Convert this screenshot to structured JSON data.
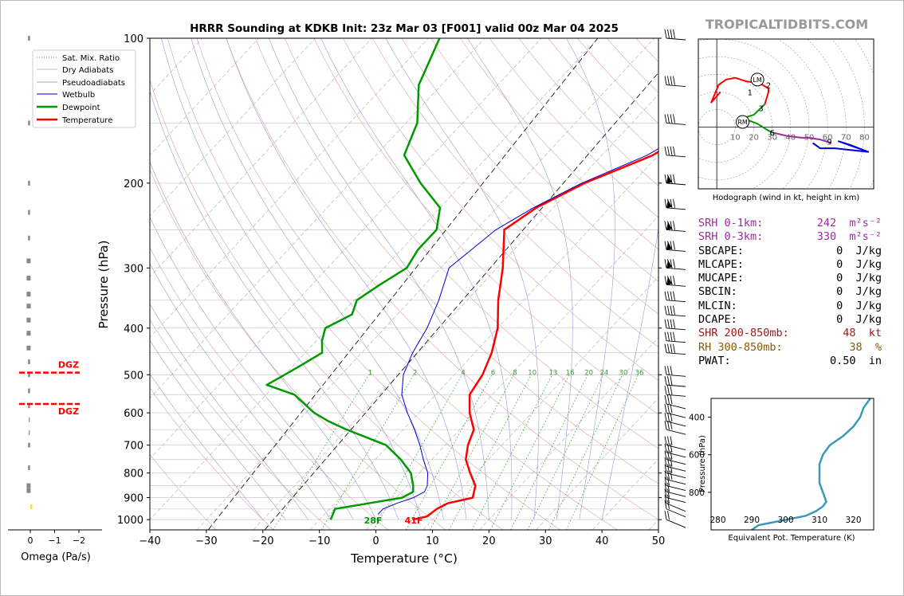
{
  "title": "HRRR Sounding at KDKB Init: 23z Mar 03 [F001] valid 00z Mar 04 2025",
  "watermark": "TROPICALTIDBITS.COM",
  "axes": {
    "xlabel": "Temperature (°C)",
    "ylabel": "Pressure (hPa)",
    "x_ticks": [
      "−40",
      "−30",
      "−20",
      "−10",
      "0",
      "10",
      "20",
      "30",
      "40",
      "50"
    ],
    "y_ticks": [
      "100",
      "200",
      "300",
      "400",
      "500",
      "600",
      "700",
      "800",
      "900",
      "1000"
    ]
  },
  "legend": [
    "Sat. Mix. Ratio",
    "Dry Adiabats",
    "Pseudoadiabats",
    "Wetbulb",
    "Dewpoint",
    "Temperature"
  ],
  "mixing_ratio_labels": [
    "1",
    "2",
    "4",
    "6",
    "8",
    "10",
    "13",
    "16",
    "20",
    "24",
    "30",
    "36"
  ],
  "surface_labels": {
    "dewpoint": "28F",
    "temperature": "41F"
  },
  "omega": {
    "xlabel": "Omega (Pa/s)",
    "ticks": [
      "0",
      "−1",
      "−2"
    ],
    "dgz_label": "DGZ"
  },
  "hodograph": {
    "caption": "Hodograph (wind in kt, height in km)",
    "ring_labels": [
      "10",
      "20",
      "30",
      "40",
      "50",
      "60",
      "70",
      "80"
    ],
    "markers": [
      "LM",
      "RM"
    ],
    "height_labels": [
      "1",
      "2",
      "3",
      "6",
      "9"
    ]
  },
  "thetae": {
    "xlabel": "Equivalent Pot. Temperature (K)",
    "ylabel": "Pressure (hPa)",
    "x_ticks": [
      "280",
      "290",
      "300",
      "310",
      "320"
    ],
    "y_ticks": [
      "400",
      "600",
      "800"
    ]
  },
  "stats": [
    {
      "label": "SRH 0-1km:",
      "value": "242",
      "unit": "m²s⁻²",
      "color": "#9b2d9b"
    },
    {
      "label": "SRH 0-3km:",
      "value": "330",
      "unit": "m²s⁻²",
      "color": "#9b2d9b"
    },
    {
      "label": "SBCAPE:",
      "value": "0",
      "unit": "J/kg",
      "color": "#000000"
    },
    {
      "label": "MLCAPE:",
      "value": "0",
      "unit": "J/kg",
      "color": "#000000"
    },
    {
      "label": "MUCAPE:",
      "value": "0",
      "unit": "J/kg",
      "color": "#000000"
    },
    {
      "label": "SBCIN:",
      "value": "0",
      "unit": "J/kg",
      "color": "#000000"
    },
    {
      "label": "MLCIN:",
      "value": "0",
      "unit": "J/kg",
      "color": "#000000"
    },
    {
      "label": "DCAPE:",
      "value": "0",
      "unit": "J/kg",
      "color": "#000000"
    },
    {
      "label": "SHR 200-850mb:",
      "value": "48",
      "unit": "kt",
      "color": "#a01818"
    },
    {
      "label": "RH 300-850mb:",
      "value": "38",
      "unit": "%",
      "color": "#8a5a00"
    },
    {
      "label": "PWAT:",
      "value": "0.50",
      "unit": "in",
      "color": "#000000"
    }
  ],
  "chart_data": [
    {
      "type": "line",
      "name": "skew-t",
      "xlim": [
        -40,
        50
      ],
      "ylim_hpa": [
        1050,
        100
      ],
      "y_log": true,
      "skew": "isotherms slanted",
      "grid": true,
      "legend_position": "top-left",
      "series": [
        {
          "name": "Temperature",
          "color": "#ff0000",
          "p": [
            1000,
            985,
            950,
            925,
            900,
            850,
            800,
            750,
            700,
            650,
            600,
            550,
            500,
            450,
            400,
            350,
            300,
            250,
            225,
            200,
            175,
            150,
            125,
            100
          ],
          "t": [
            6.5,
            8.5,
            9,
            10,
            13.5,
            12,
            9,
            6,
            4,
            2.5,
            -1,
            -4,
            -5,
            -7,
            -10,
            -14.5,
            -19,
            -25,
            -23,
            -18.5,
            -11,
            -7,
            -5.5,
            -3.5
          ]
        },
        {
          "name": "Dewpoint",
          "color": "#009900",
          "p": [
            1000,
            950,
            925,
            900,
            875,
            850,
            800,
            750,
            700,
            650,
            625,
            600,
            550,
            525,
            500,
            475,
            450,
            425,
            400,
            375,
            350,
            325,
            300,
            275,
            250,
            225,
            200,
            175,
            150,
            125,
            100
          ],
          "t": [
            -8,
            -9,
            -4,
            1,
            2,
            1,
            -1.5,
            -5.5,
            -10.5,
            -20,
            -24.5,
            -28.5,
            -35,
            -41.5,
            -40,
            -38.5,
            -37,
            -39,
            -40.5,
            -38,
            -39.5,
            -38,
            -36,
            -37,
            -37,
            -40,
            -47.5,
            -55,
            -58,
            -64,
            -68
          ]
        },
        {
          "name": "Wetbulb",
          "color": "#0000cc",
          "p": [
            975,
            950,
            925,
            900,
            875,
            850,
            800,
            750,
            700,
            650,
            600,
            550,
            500,
            450,
            400,
            350,
            300,
            250,
            225,
            200,
            175,
            150,
            125,
            100
          ],
          "t": [
            -0.5,
            -0.5,
            1,
            3,
            4,
            3.5,
            1.5,
            -1.5,
            -4.5,
            -8,
            -12,
            -16,
            -19,
            -21,
            -22.5,
            -25,
            -28.5,
            -26.5,
            -23.5,
            -19,
            -12,
            -7.5,
            -6,
            -3.5
          ]
        }
      ],
      "wind_barb_levels_hpa": [
        1000,
        950,
        925,
        900,
        875,
        850,
        825,
        800,
        775,
        750,
        725,
        700,
        650,
        625,
        600,
        575,
        550,
        525,
        500,
        450,
        425,
        400,
        375,
        350,
        325,
        300,
        275,
        250,
        225,
        200,
        175,
        150,
        125,
        100
      ]
    },
    {
      "type": "line",
      "name": "omega",
      "xlim": [
        0.3,
        -2.6
      ],
      "xlabel": "Omega (Pa/s)",
      "dgz_hpa": [
        495,
        575
      ]
    },
    {
      "type": "line",
      "name": "hodograph",
      "xlim_kt": [
        -10,
        85
      ],
      "ylim_kt": [
        -35,
        50
      ],
      "series": [
        {
          "name": "0-3 km",
          "color": "#ff0000",
          "u": [
            2,
            -3,
            1,
            5,
            10,
            16,
            23,
            28,
            28,
            26
          ],
          "v": [
            20,
            14,
            24,
            27,
            28,
            26,
            25,
            22,
            20,
            13
          ]
        },
        {
          "name": "3-6 km",
          "color": "#009900",
          "u": [
            26,
            20,
            14,
            22,
            28,
            30
          ],
          "v": [
            13,
            7,
            5,
            2,
            -2,
            -3
          ]
        },
        {
          "name": "6-9 km",
          "color": "#9b2d9b",
          "u": [
            30,
            38,
            46,
            50,
            56,
            62
          ],
          "v": [
            -3,
            -5,
            -6,
            -6,
            -7,
            -9
          ]
        },
        {
          "name": "9+ km",
          "color": "#0000dd",
          "u": [
            52,
            56,
            64,
            82,
            66,
            72,
            82
          ],
          "v": [
            -9,
            -12,
            -12,
            -14,
            -8,
            -10,
            -14
          ]
        }
      ]
    },
    {
      "type": "line",
      "name": "theta-e",
      "color": "#3a99b5",
      "xlim": [
        278,
        326
      ],
      "ylim_hpa": [
        1000,
        300
      ],
      "x_k": [
        290,
        292,
        299,
        306,
        309,
        311,
        312,
        311,
        310,
        310,
        310,
        311,
        313,
        317,
        320,
        322,
        323,
        325
      ],
      "p": [
        1000,
        975,
        950,
        925,
        900,
        875,
        850,
        800,
        750,
        700,
        650,
        600,
        550,
        500,
        450,
        400,
        350,
        300
      ]
    }
  ]
}
